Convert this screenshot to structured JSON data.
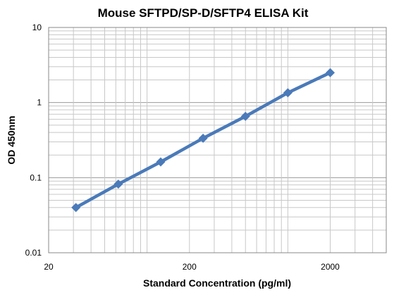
{
  "chart_data": {
    "type": "line",
    "title": "Mouse SFTPD/SP-D/SFTP4 ELISA Kit",
    "xlabel": "Standard Concentration (pg/ml)",
    "ylabel": "OD 450nm",
    "x_scale": "log",
    "y_scale": "log",
    "xlim": [
      20,
      5000
    ],
    "ylim": [
      0.01,
      10
    ],
    "x_tick_labels": [
      "20",
      "200",
      "2000"
    ],
    "y_tick_labels": [
      "10",
      "1",
      "0.1",
      "0.01"
    ],
    "grid": true,
    "legend": "none",
    "series": [
      {
        "color": "#4a7ab9",
        "marker": "diamond",
        "points": [
          {
            "x": 31.25,
            "y": 0.04
          },
          {
            "x": 62.5,
            "y": 0.082
          },
          {
            "x": 125,
            "y": 0.162
          },
          {
            "x": 250,
            "y": 0.335
          },
          {
            "x": 500,
            "y": 0.655
          },
          {
            "x": 1000,
            "y": 1.35
          },
          {
            "x": 2000,
            "y": 2.5
          }
        ]
      }
    ]
  }
}
